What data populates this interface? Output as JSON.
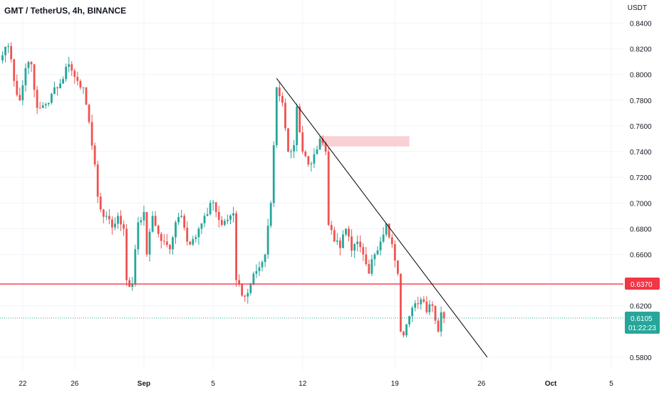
{
  "header": {
    "title": "GMT / TetherUS, 4h, BINANCE",
    "price_unit": "USDT"
  },
  "colors": {
    "up": "#26a69a",
    "down": "#ef5350",
    "level_line": "#f23645",
    "zone": "#f8c8cc",
    "trendline": "#000000",
    "current_price_bg": "#26a69a",
    "axis_text": "#131722"
  },
  "chart_data": {
    "type": "candlestick",
    "symbol": "GMT / TetherUS",
    "interval": "4h",
    "exchange": "BINANCE",
    "y_axis": {
      "range": [
        0.57,
        0.858
      ],
      "ticks": [
        "0.8400",
        "0.8200",
        "0.8000",
        "0.7800",
        "0.7600",
        "0.7400",
        "0.7200",
        "0.7000",
        "0.6800",
        "0.6600",
        "0.6200",
        "0.5800"
      ],
      "tick_values": [
        0.84,
        0.82,
        0.8,
        0.78,
        0.76,
        0.74,
        0.72,
        0.7,
        0.68,
        0.66,
        0.62,
        0.58
      ]
    },
    "x_axis": {
      "ticks": [
        "22",
        "26",
        "Sep",
        "5",
        "12",
        "19",
        "26",
        "Oct",
        "5"
      ],
      "tick_candle_index": [
        7,
        25,
        49,
        73,
        104,
        136,
        166,
        190,
        211
      ]
    },
    "price_labels": {
      "level": "0.6370",
      "current": "0.6105",
      "countdown": "01:22:23"
    },
    "horizontal_level": {
      "value": 0.637
    },
    "current_price": {
      "value": 0.6105
    },
    "zone": {
      "top": 0.752,
      "bottom": 0.744,
      "from_candle": 110,
      "to_candle": 141
    },
    "trendline": {
      "from": {
        "candle": 95,
        "price": 0.797
      },
      "to": {
        "candle": 168,
        "price": 0.58
      }
    },
    "anchors": [
      {
        "i": 0,
        "p": 0.815
      },
      {
        "i": 2,
        "p": 0.822
      },
      {
        "i": 4,
        "p": 0.795
      },
      {
        "i": 6,
        "p": 0.78
      },
      {
        "i": 8,
        "p": 0.805
      },
      {
        "i": 10,
        "p": 0.808
      },
      {
        "i": 12,
        "p": 0.774
      },
      {
        "i": 14,
        "p": 0.776
      },
      {
        "i": 16,
        "p": 0.778
      },
      {
        "i": 18,
        "p": 0.79
      },
      {
        "i": 20,
        "p": 0.793
      },
      {
        "i": 22,
        "p": 0.806
      },
      {
        "i": 24,
        "p": 0.803
      },
      {
        "i": 26,
        "p": 0.795
      },
      {
        "i": 28,
        "p": 0.79
      },
      {
        "i": 30,
        "p": 0.763
      },
      {
        "i": 32,
        "p": 0.73
      },
      {
        "i": 33,
        "p": 0.705
      },
      {
        "i": 34,
        "p": 0.695
      },
      {
        "i": 36,
        "p": 0.69
      },
      {
        "i": 38,
        "p": 0.681
      },
      {
        "i": 40,
        "p": 0.69
      },
      {
        "i": 42,
        "p": 0.68
      },
      {
        "i": 43,
        "p": 0.64
      },
      {
        "i": 45,
        "p": 0.637
      },
      {
        "i": 47,
        "p": 0.685
      },
      {
        "i": 49,
        "p": 0.693
      },
      {
        "i": 50,
        "p": 0.66
      },
      {
        "i": 52,
        "p": 0.69
      },
      {
        "i": 54,
        "p": 0.676
      },
      {
        "i": 56,
        "p": 0.67
      },
      {
        "i": 58,
        "p": 0.664
      },
      {
        "i": 60,
        "p": 0.685
      },
      {
        "i": 62,
        "p": 0.69
      },
      {
        "i": 64,
        "p": 0.67
      },
      {
        "i": 66,
        "p": 0.672
      },
      {
        "i": 68,
        "p": 0.68
      },
      {
        "i": 70,
        "p": 0.69
      },
      {
        "i": 72,
        "p": 0.7
      },
      {
        "i": 74,
        "p": 0.693
      },
      {
        "i": 76,
        "p": 0.683
      },
      {
        "i": 78,
        "p": 0.687
      },
      {
        "i": 80,
        "p": 0.692
      },
      {
        "i": 81,
        "p": 0.64
      },
      {
        "i": 83,
        "p": 0.628
      },
      {
        "i": 85,
        "p": 0.63
      },
      {
        "i": 87,
        "p": 0.645
      },
      {
        "i": 89,
        "p": 0.65
      },
      {
        "i": 91,
        "p": 0.66
      },
      {
        "i": 93,
        "p": 0.7
      },
      {
        "i": 94,
        "p": 0.745
      },
      {
        "i": 95,
        "p": 0.79
      },
      {
        "i": 97,
        "p": 0.778
      },
      {
        "i": 99,
        "p": 0.74
      },
      {
        "i": 101,
        "p": 0.745
      },
      {
        "i": 102,
        "p": 0.775
      },
      {
        "i": 104,
        "p": 0.74
      },
      {
        "i": 106,
        "p": 0.73
      },
      {
        "i": 108,
        "p": 0.738
      },
      {
        "i": 110,
        "p": 0.75
      },
      {
        "i": 112,
        "p": 0.74
      },
      {
        "i": 113,
        "p": 0.683
      },
      {
        "i": 115,
        "p": 0.67
      },
      {
        "i": 117,
        "p": 0.665
      },
      {
        "i": 119,
        "p": 0.68
      },
      {
        "i": 121,
        "p": 0.663
      },
      {
        "i": 123,
        "p": 0.67
      },
      {
        "i": 125,
        "p": 0.66
      },
      {
        "i": 127,
        "p": 0.645
      },
      {
        "i": 129,
        "p": 0.66
      },
      {
        "i": 131,
        "p": 0.67
      },
      {
        "i": 133,
        "p": 0.684
      },
      {
        "i": 135,
        "p": 0.668
      },
      {
        "i": 137,
        "p": 0.645
      },
      {
        "i": 138,
        "p": 0.6
      },
      {
        "i": 139,
        "p": 0.597
      },
      {
        "i": 141,
        "p": 0.612
      },
      {
        "i": 143,
        "p": 0.622
      },
      {
        "i": 145,
        "p": 0.625
      },
      {
        "i": 147,
        "p": 0.615
      },
      {
        "i": 149,
        "p": 0.62
      },
      {
        "i": 151,
        "p": 0.6
      },
      {
        "i": 152,
        "p": 0.615
      },
      {
        "i": 153,
        "p": 0.6105
      }
    ]
  }
}
